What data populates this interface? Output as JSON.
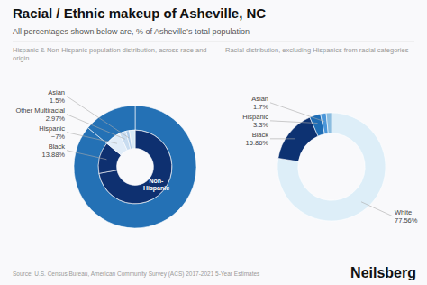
{
  "title": "Racial / Ethnic makeup of Asheville, NC",
  "subtitle": "All percentages shown below are, % of Asheville’s total population",
  "annotations": [
    "Source: U.S. Census Bureau, American Community Survey (ACS) 2017-2021 5-Year Estimates",
    "Neilsberg"
  ],
  "chart_data": [
    {
      "type": "pie",
      "title": "Hispanic & Non-Hispanic population distribution, across race and origin",
      "data_labels": true,
      "series": [
        {
          "values": [
            86.0,
            14.0
          ],
          "colors": [
            "#2471b5",
            "#2471b5"
          ]
        },
        {
          "categories": [
            null,
            "Black",
            "Hispanic",
            "Other Multiracial",
            "Asian",
            null
          ],
          "values": [
            72.12,
            13.88,
            7.0,
            2.97,
            1.5,
            2.53
          ],
          "value_labels": [
            null,
            "13.88%",
            "~7%",
            "2.97%",
            "1.5%",
            null
          ],
          "colors": [
            "#0e3070",
            "#0e3070",
            "#e0ecf8",
            "#c8dcf0",
            "#b0cce8",
            "#d8eaf6"
          ]
        }
      ],
      "annotations": [
        "Non-\nHispanic"
      ]
    },
    {
      "type": "pie",
      "title": "Racial distribution, excluding Hispanics from racial categories",
      "data_labels": true,
      "series": [
        {
          "categories": [
            "White",
            "Black",
            "Hispanic",
            "Asian",
            null
          ],
          "values": [
            77.56,
            15.86,
            3.3,
            1.7,
            1.58
          ],
          "value_labels": [
            "77.56%",
            "15.86%",
            "3.3%",
            "1.7%",
            null
          ],
          "colors": [
            "#ddeef8",
            "#0d3272",
            "#1e6db5",
            "#4a96d9",
            "#8bbde0"
          ]
        }
      ]
    }
  ]
}
